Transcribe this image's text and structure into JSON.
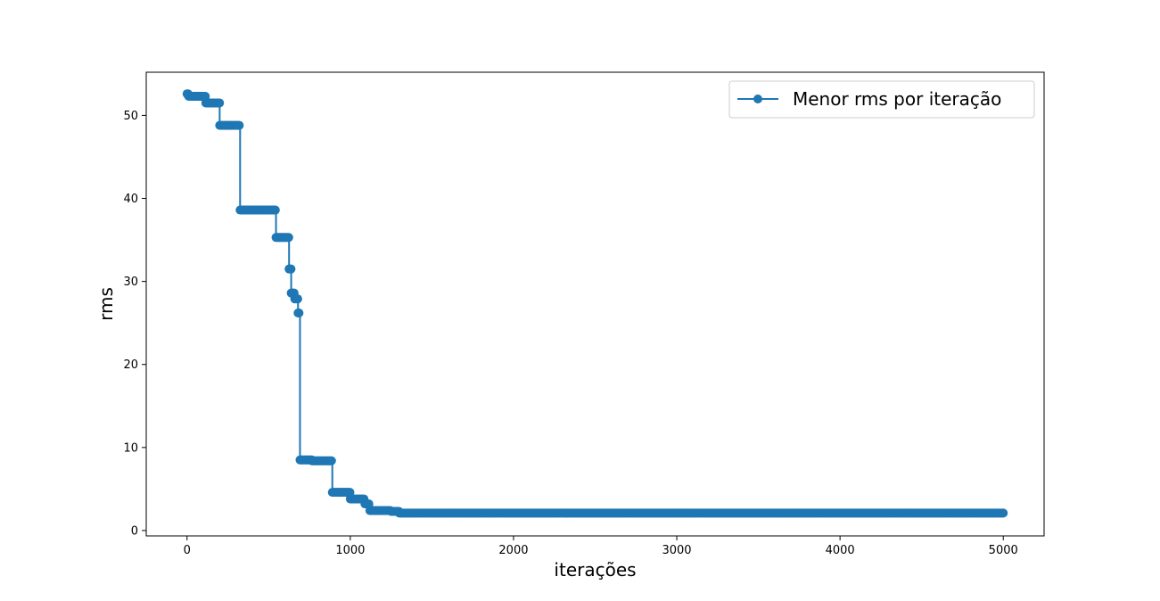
{
  "chart_data": {
    "type": "line",
    "marker": "circle",
    "title": "",
    "xlabel": "iterações",
    "ylabel": "rms",
    "xlim": [
      -250,
      5250
    ],
    "ylim": [
      -0.65,
      55.2
    ],
    "xticks": [
      0,
      1000,
      2000,
      3000,
      4000,
      5000
    ],
    "xtick_labels": [
      "0",
      "1000",
      "2000",
      "3000",
      "4000",
      "5000"
    ],
    "yticks": [
      0,
      10,
      20,
      30,
      40,
      50
    ],
    "ytick_labels": [
      "0",
      "10",
      "20",
      "30",
      "40",
      "50"
    ],
    "grid": false,
    "legend_position": "top-right",
    "colors": {
      "series": "#1f77b4",
      "axes": "#000000",
      "background": "#ffffff"
    },
    "series": [
      {
        "name": "Menor rms por iteração",
        "steps": [
          [
            0,
            52.6
          ],
          [
            10,
            52.3
          ],
          [
            115,
            51.5
          ],
          [
            200,
            48.8
          ],
          [
            325,
            38.6
          ],
          [
            545,
            35.3
          ],
          [
            625,
            31.5
          ],
          [
            638,
            28.6
          ],
          [
            660,
            27.9
          ],
          [
            680,
            26.2
          ],
          [
            692,
            8.5
          ],
          [
            765,
            8.4
          ],
          [
            890,
            4.6
          ],
          [
            1000,
            3.8
          ],
          [
            1090,
            3.2
          ],
          [
            1120,
            2.4
          ],
          [
            1250,
            2.3
          ],
          [
            1300,
            2.1
          ],
          [
            5000,
            2.1
          ]
        ]
      }
    ]
  }
}
